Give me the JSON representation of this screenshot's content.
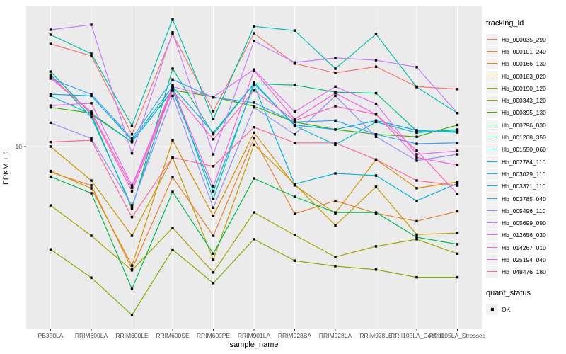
{
  "chart_data": {
    "type": "line",
    "title": "",
    "xlabel": "sample_name",
    "ylabel": "FPKM + 1",
    "yscale": "log10",
    "ytick_labels": [
      "10"
    ],
    "yticks": [
      10
    ],
    "ylim": [
      1.45,
      45
    ],
    "grid": "major-only",
    "panel_bg": "#EBEBEB",
    "grid_color": "#FFFFFF",
    "axis_text_color": "#4D4D4D",
    "tick_mark_color": "#333333",
    "point_shape": "filled-square",
    "point_color": "#000000",
    "legend_position": "right",
    "categories": [
      "PB350LA",
      "RRIM600LA",
      "RRIM600LE",
      "RRIM600SE",
      "RRIM600PE",
      "RRIM901LA",
      "RRIM928BA",
      "RRIM928LA",
      "RRIM928LE",
      "RRII105LA_Control",
      "RRII105LA_Stressed"
    ],
    "legend": {
      "tracking_title": "tracking_id",
      "quant_title": "quant_status",
      "quant_value": "OK"
    },
    "series": [
      {
        "name": "Hb_000035_290",
        "color": "#F8766D",
        "values": [
          30.0,
          26.4,
          11.4,
          33.3,
          14.6,
          33.6,
          24.3,
          22.0,
          23.5,
          19.0,
          18.5
        ]
      },
      {
        "name": "Hb_000101_240",
        "color": "#EA8331",
        "values": [
          7.6,
          6.6,
          2.7,
          7.2,
          3.85,
          10.9,
          4.87,
          5.6,
          4.9,
          4.5,
          5.0
        ]
      },
      {
        "name": "Hb_000166_130",
        "color": "#D89000",
        "values": [
          7.7,
          6.4,
          2.8,
          10.7,
          4.76,
          11.6,
          6.6,
          4.9,
          8.7,
          6.4,
          6.85
        ]
      },
      {
        "name": "Hb_000183_020",
        "color": "#C09B00",
        "values": [
          10.0,
          6.95,
          3.85,
          8.9,
          2.98,
          10.2,
          6.7,
          4.3,
          6.5,
          3.9,
          3.97
        ]
      },
      {
        "name": "Hb_000190_120",
        "color": "#A3A500",
        "values": [
          5.33,
          3.85,
          2.66,
          4.19,
          2.6,
          4.94,
          3.88,
          3.07,
          3.44,
          3.71,
          3.18
        ]
      },
      {
        "name": "Hb_000343_120",
        "color": "#7CAE00",
        "values": [
          3.33,
          2.46,
          1.65,
          3.32,
          2.32,
          3.71,
          2.95,
          2.78,
          2.68,
          2.47,
          2.47
        ]
      },
      {
        "name": "Hb_000395_130",
        "color": "#39B600",
        "values": [
          15.2,
          14.3,
          10.5,
          18.3,
          17.0,
          15.4,
          13.0,
          12.0,
          11.4,
          11.1,
          12.6
        ]
      },
      {
        "name": "Hb_000796_030",
        "color": "#00BB4E",
        "values": [
          7.25,
          6.07,
          2.18,
          6.16,
          3.18,
          7.11,
          5.84,
          4.94,
          4.94,
          3.79,
          3.52
        ]
      },
      {
        "name": "Hb_001268_350",
        "color": "#00C087",
        "values": [
          22.3,
          14.1,
          5.14,
          23.0,
          11.4,
          19.6,
          19.3,
          17.9,
          17.7,
          11.8,
          11.8
        ]
      },
      {
        "name": "Hb_001550_060",
        "color": "#00C1AB",
        "values": [
          33.1,
          27.0,
          12.5,
          39.1,
          13.4,
          36.2,
          34.6,
          23.0,
          33.3,
          18.9,
          14.3
        ]
      },
      {
        "name": "Hb_002784_110",
        "color": "#00BFC4",
        "values": [
          21.6,
          13.7,
          5.25,
          19.3,
          5.71,
          19.9,
          12.5,
          10.2,
          13.0,
          11.6,
          12.0
        ]
      },
      {
        "name": "Hb_003029_110",
        "color": "#00BAE0",
        "values": [
          17.2,
          14.1,
          10.5,
          18.2,
          6.2,
          19.3,
          6.7,
          7.5,
          7.33,
          5.6,
          6.74
        ]
      },
      {
        "name": "Hb_003371_110",
        "color": "#00B0F6",
        "values": [
          17.5,
          17.2,
          10.7,
          19.0,
          11.6,
          19.6,
          12.6,
          12.0,
          13.2,
          11.9,
          11.63
        ]
      },
      {
        "name": "Hb_003785_040",
        "color": "#35A2FF",
        "values": [
          20.7,
          17.5,
          10.9,
          20.5,
          16.9,
          16.0,
          13.0,
          13.2,
          11.4,
          10.3,
          10.4
        ]
      },
      {
        "name": "Hb_005496_110",
        "color": "#9590FF",
        "values": [
          12.9,
          10.9,
          5.33,
          17.2,
          5.2,
          15.2,
          11.4,
          17.2,
          11.1,
          8.6,
          9.2
        ]
      },
      {
        "name": "Hb_005699_090",
        "color": "#C77CFF",
        "values": [
          34.9,
          36.8,
          9.3,
          33.9,
          9.2,
          30.9,
          24.6,
          25.8,
          25.2,
          23.4,
          14.3
        ]
      },
      {
        "name": "Hb_012656_030",
        "color": "#E76BF3",
        "values": [
          15.5,
          15.9,
          6.59,
          19.0,
          17.0,
          22.8,
          14.5,
          19.0,
          15.8,
          9.2,
          9.55
        ]
      },
      {
        "name": "Hb_014267_010",
        "color": "#FA62DB",
        "values": [
          20.8,
          14.5,
          6.44,
          18.6,
          6.54,
          22.5,
          13.4,
          17.7,
          14.1,
          8.9,
          8.2
        ]
      },
      {
        "name": "Hb_025194_040",
        "color": "#FF62BC",
        "values": [
          21.2,
          14.3,
          6.2,
          18.2,
          10.8,
          18.2,
          13.2,
          15.4,
          14.1,
          9.6,
          6.03
        ]
      },
      {
        "name": "Hb_048476_180",
        "color": "#FF6A98",
        "values": [
          10.5,
          10.7,
          4.7,
          8.9,
          8.1,
          12.3,
          10.4,
          10.4,
          8.7,
          6.95,
          6.59
        ]
      }
    ]
  }
}
